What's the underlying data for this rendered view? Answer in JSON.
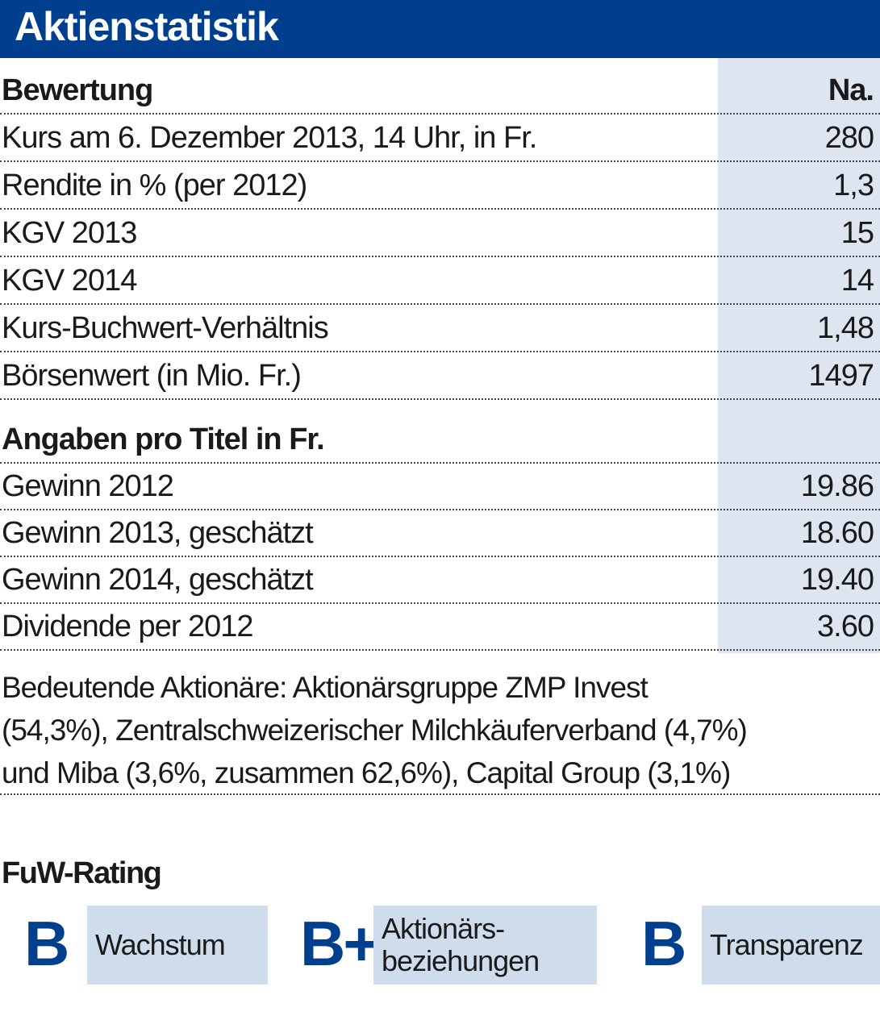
{
  "header": {
    "title": "Aktienstatistik"
  },
  "valuation": {
    "heading": "Bewertung",
    "column": "Na.",
    "rows": [
      [
        "Kurs am 6. Dezember 2013, 14 Uhr, in Fr.",
        "280"
      ],
      [
        "Rendite in % (per 2012)",
        "1,3"
      ],
      [
        "KGV 2013",
        "15"
      ],
      [
        "KGV 2014",
        "14"
      ],
      [
        "Kurs-Buchwert-Verhältnis",
        "1,48"
      ],
      [
        "Börsenwert (in Mio. Fr.)",
        "1497"
      ]
    ]
  },
  "per_share": {
    "heading": "Angaben pro Titel in Fr.",
    "rows": [
      [
        "Gewinn 2012",
        "19.86"
      ],
      [
        "Gewinn 2013, geschätzt",
        "18.60"
      ],
      [
        "Gewinn 2014, geschätzt",
        "19.40"
      ],
      [
        "Dividende per 2012",
        "3.60"
      ]
    ]
  },
  "note": {
    "lines": [
      "Bedeutende Aktionäre: Aktionärsgruppe ZMP Invest",
      "(54,3%), Zentralschweizerischer Milchkäuferverband (4,7%)",
      "und Miba (3,6%, zusammen 62,6%), Capital Group (3,1%)"
    ]
  },
  "rating": {
    "title": "FuW-Rating",
    "items": [
      {
        "grade": "B",
        "label": [
          "Wachstum"
        ]
      },
      {
        "grade": "B+",
        "label": [
          "Aktionärs-",
          "beziehungen"
        ]
      },
      {
        "grade": "B",
        "label": [
          "Transparenz"
        ]
      }
    ]
  }
}
